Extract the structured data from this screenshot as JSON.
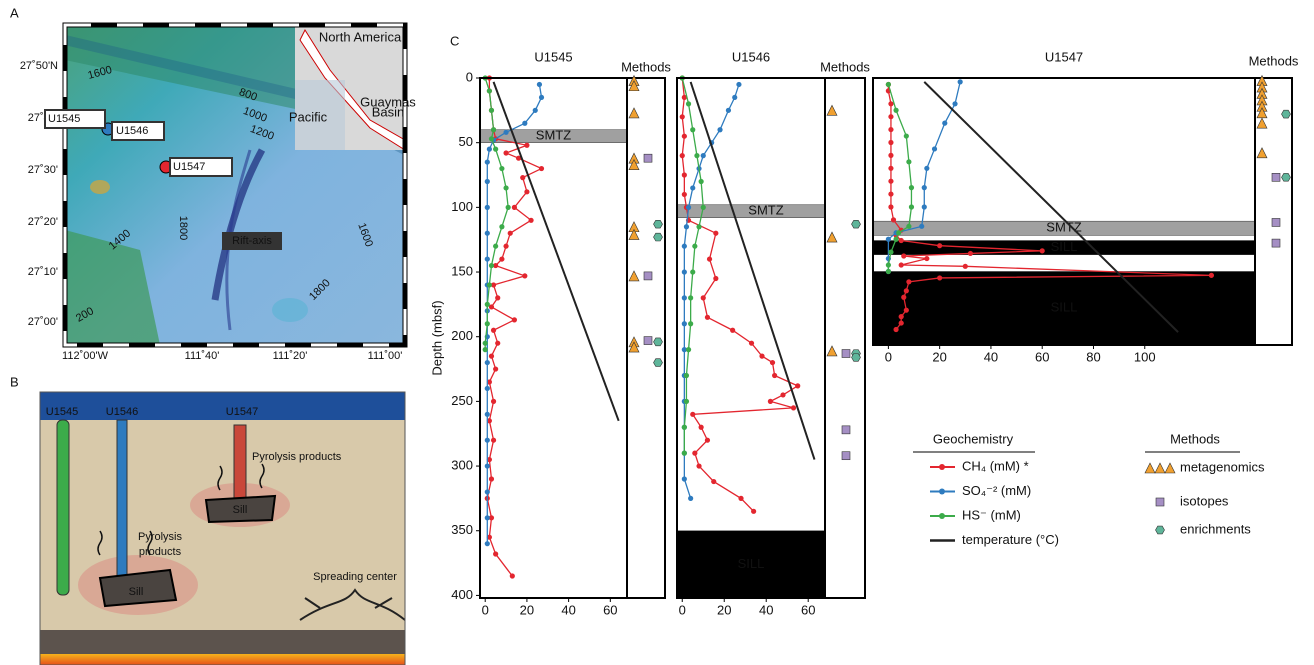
{
  "panel_labels": [
    "A",
    "B",
    "C"
  ],
  "map": {
    "lat_labels": [
      "27˚50'N",
      "27˚40'",
      "27˚30'",
      "27˚20'",
      "27˚10'",
      "27˚00'"
    ],
    "lon_labels": [
      "112˚00'W",
      "111˚40'",
      "111˚20'",
      "111˚00'"
    ],
    "sites": [
      "U1545",
      "U1546",
      "U1547"
    ],
    "contours": [
      "1600",
      "800",
      "1000",
      "1200",
      "1800",
      "1400",
      "1600",
      "1800",
      "200"
    ],
    "rift_label": "Rift-axis",
    "inset": {
      "continent": "North America",
      "basin": [
        "Guaymas",
        "Basin"
      ],
      "ocean": "Pacific"
    }
  },
  "diagram": {
    "sites": [
      "U1545",
      "U1546",
      "U1547"
    ],
    "pyrolysis_left": [
      "Pyrolysis",
      "products"
    ],
    "pyrolysis_right": "Pyrolysis products",
    "sills": [
      "Sill",
      "Sill"
    ],
    "spreading": "Spreading center"
  },
  "legend": {
    "title": "Geochemistry"
  },
  "methods_legend": {
    "title": "Methods",
    "items": [
      "metagenomics",
      "isotopes",
      "enrichments"
    ],
    "colors": [
      "#f0a030",
      "#a58fc4",
      "#5fb59a"
    ]
  },
  "chart_data": [
    {
      "type": "profile",
      "title": "U1545",
      "methods_title": "Methods",
      "ylabel": "Depth (mbsf)",
      "xlim": [
        -2.5,
        68
      ],
      "xticks": [
        0,
        20,
        40,
        60
      ],
      "ylim": [
        0,
        402
      ],
      "yticks": [
        0,
        50,
        100,
        150,
        200,
        250,
        300,
        350,
        400
      ],
      "series": [
        {
          "name": "CH₄ (mM) *",
          "color": "#e3262f",
          "markers": true,
          "depths": [
            0,
            10,
            25,
            40,
            47,
            52,
            58,
            62,
            70,
            77,
            88,
            100,
            110,
            120,
            130,
            140,
            145,
            153,
            160,
            170,
            177,
            187,
            195,
            205,
            215,
            225,
            235,
            250,
            265,
            280,
            295,
            310,
            325,
            340,
            355,
            368,
            385
          ],
          "values": [
            2,
            2,
            3,
            4,
            5,
            20,
            10,
            16,
            27,
            18,
            20,
            14,
            22,
            12,
            10,
            8,
            5,
            19,
            4,
            6,
            3,
            14,
            4,
            6,
            3,
            5,
            2,
            4,
            2,
            4,
            2,
            3,
            1,
            3,
            2,
            5,
            13
          ]
        },
        {
          "name": "SO₄⁻² (mM)",
          "color": "#2e7bbf",
          "markers": true,
          "depths": [
            5,
            15,
            25,
            35,
            42,
            48,
            55,
            65,
            80,
            100,
            120,
            140,
            160,
            180,
            200,
            220,
            240,
            260,
            280,
            300,
            320,
            340,
            360
          ],
          "values": [
            26,
            27,
            24,
            19,
            10,
            4,
            2,
            1,
            1,
            1,
            1,
            1,
            1,
            1,
            1,
            1,
            1,
            1,
            1,
            1,
            1,
            1,
            1
          ]
        },
        {
          "name": "HS⁻ (mM)",
          "color": "#3cab4a",
          "markers": true,
          "depths": [
            0,
            10,
            25,
            40,
            47,
            55,
            70,
            85,
            100,
            115,
            130,
            145,
            160,
            175,
            190,
            205,
            210
          ],
          "values": [
            0,
            2,
            3,
            4,
            3,
            5,
            8,
            10,
            11,
            8,
            5,
            3,
            2,
            1,
            1,
            0,
            0
          ]
        },
        {
          "name": "temperature (°C)",
          "color": "#222222",
          "markers": false,
          "depths": [
            3,
            265
          ],
          "values": [
            4,
            64
          ]
        }
      ],
      "zones": [
        {
          "label": "SMTZ",
          "range": [
            40,
            50
          ],
          "color": "#a0a0a0"
        }
      ],
      "methods": [
        [
          2,
          6,
          27,
          62,
          67,
          115,
          121,
          153,
          204,
          208
        ],
        [
          62,
          153,
          203
        ],
        [
          113,
          123,
          204,
          220
        ]
      ]
    },
    {
      "type": "profile",
      "title": "U1546",
      "methods_title": "Methods",
      "xlim": [
        -2.5,
        68
      ],
      "xticks": [
        0,
        20,
        40,
        60
      ],
      "ylim": [
        0,
        402
      ],
      "series": [
        {
          "name": "CH₄ (mM) *",
          "color": "#e3262f",
          "markers": true,
          "depths": [
            0,
            15,
            30,
            45,
            60,
            75,
            90,
            100,
            110,
            120,
            140,
            155,
            170,
            185,
            195,
            205,
            215,
            220,
            230,
            238,
            245,
            250,
            255,
            260,
            270,
            280,
            290,
            300,
            312,
            325,
            335
          ],
          "values": [
            0,
            1,
            0,
            1,
            0,
            1,
            1,
            2,
            3,
            16,
            13,
            16,
            10,
            12,
            24,
            33,
            38,
            43,
            44,
            55,
            48,
            42,
            53,
            5,
            9,
            12,
            6,
            8,
            15,
            28,
            34
          ]
        },
        {
          "name": "SO₄⁻² (mM)",
          "color": "#2e7bbf",
          "markers": true,
          "depths": [
            5,
            15,
            25,
            40,
            50,
            60,
            70,
            85,
            100,
            115,
            130,
            150,
            170,
            190,
            210,
            230,
            250,
            270,
            290,
            310,
            325
          ],
          "values": [
            27,
            25,
            22,
            18,
            14,
            10,
            8,
            5,
            3,
            2,
            1,
            1,
            1,
            1,
            1,
            1,
            1,
            1,
            1,
            1,
            4
          ]
        },
        {
          "name": "HS⁻ (mM)",
          "color": "#3cab4a",
          "markers": true,
          "depths": [
            0,
            20,
            40,
            60,
            80,
            100,
            115,
            130,
            150,
            170,
            190,
            210,
            230,
            250,
            270,
            290
          ],
          "values": [
            0,
            3,
            5,
            7,
            9,
            10,
            8,
            6,
            5,
            4,
            4,
            3,
            2,
            2,
            1,
            1
          ]
        },
        {
          "name": "temperature (°C)",
          "color": "#222222",
          "markers": false,
          "depths": [
            3,
            295
          ],
          "values": [
            4,
            63
          ]
        }
      ],
      "zones": [
        {
          "label": "SMTZ",
          "range": [
            98,
            108
          ],
          "color": "#a0a0a0"
        },
        {
          "label": "SILL",
          "range": [
            350,
            402
          ],
          "color": "#000000"
        }
      ],
      "methods": [
        [
          25,
          123,
          211
        ],
        [
          213,
          272,
          292
        ],
        [
          113,
          213,
          216
        ]
      ]
    },
    {
      "type": "profile",
      "title": "U1547",
      "methods_title": "Methods",
      "xlim": [
        -6,
        143
      ],
      "xticks": [
        0,
        20,
        40,
        60,
        80,
        100
      ],
      "ylim": [
        0,
        207
      ],
      "series": [
        {
          "name": "CH₄ (mM) *",
          "color": "#e3262f",
          "markers": true,
          "depths": [
            5,
            10,
            20,
            30,
            40,
            50,
            60,
            70,
            80,
            90,
            100,
            110,
            118,
            122,
            126,
            130,
            134,
            136,
            138,
            140,
            145,
            146,
            153,
            155,
            158,
            165,
            170,
            180,
            185,
            190,
            195
          ],
          "values": [
            0,
            0,
            1,
            1,
            1,
            1,
            1,
            1,
            1,
            1,
            1,
            2,
            5,
            3,
            5,
            20,
            60,
            32,
            6,
            15,
            5,
            30,
            126,
            20,
            8,
            7,
            6,
            7,
            5,
            5,
            3
          ]
        },
        {
          "name": "SO₄⁻² (mM)",
          "color": "#2e7bbf",
          "markers": true,
          "depths": [
            3,
            20,
            35,
            55,
            70,
            85,
            100,
            115,
            120,
            125,
            140,
            150
          ],
          "values": [
            28,
            26,
            22,
            18,
            15,
            14,
            14,
            13,
            3,
            0,
            0,
            0
          ]
        },
        {
          "name": "HS⁻ (mM)",
          "color": "#3cab4a",
          "markers": true,
          "depths": [
            5,
            25,
            45,
            65,
            85,
            100,
            115,
            120,
            125,
            135,
            145,
            150
          ],
          "values": [
            0,
            3,
            7,
            8,
            9,
            9,
            8,
            4,
            3,
            1,
            0,
            0
          ]
        },
        {
          "name": "temperature (°C)",
          "color": "#222222",
          "markers": false,
          "depths": [
            3,
            197
          ],
          "values": [
            14,
            113
          ]
        }
      ],
      "zones": [
        {
          "label": "SMTZ",
          "range": [
            111,
            122
          ],
          "color": "#a0a0a0"
        },
        {
          "label": "SILL",
          "range": [
            126,
            137
          ],
          "color": "#000000"
        },
        {
          "label": "SILL",
          "range": [
            150,
            207
          ],
          "color": "#000000"
        }
      ],
      "methods": [
        [
          2,
          7,
          12,
          17,
          22,
          27,
          35,
          58
        ],
        [
          77,
          112,
          128
        ],
        [
          28,
          77
        ]
      ]
    }
  ]
}
